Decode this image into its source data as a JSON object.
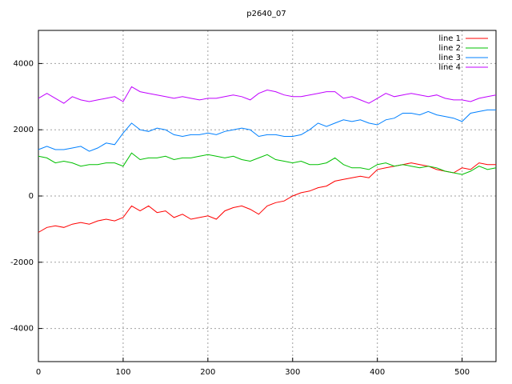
{
  "chart_data": {
    "type": "line",
    "title": "p2640_07",
    "x": [
      0,
      10,
      20,
      30,
      40,
      50,
      60,
      70,
      80,
      90,
      100,
      110,
      120,
      130,
      140,
      150,
      160,
      170,
      180,
      190,
      200,
      210,
      220,
      230,
      240,
      250,
      260,
      270,
      280,
      290,
      300,
      310,
      320,
      330,
      340,
      350,
      360,
      370,
      380,
      390,
      400,
      410,
      420,
      430,
      440,
      450,
      460,
      470,
      480,
      490,
      500,
      510,
      520,
      530,
      540
    ],
    "series": [
      {
        "name": "line 1",
        "color": "#ff0000",
        "values": [
          -1100,
          -950,
          -900,
          -950,
          -850,
          -800,
          -850,
          -750,
          -700,
          -750,
          -650,
          -300,
          -450,
          -300,
          -500,
          -450,
          -650,
          -550,
          -700,
          -650,
          -600,
          -700,
          -450,
          -350,
          -300,
          -400,
          -550,
          -300,
          -200,
          -150,
          0,
          100,
          150,
          250,
          300,
          450,
          500,
          550,
          600,
          550,
          800,
          850,
          900,
          950,
          1000,
          950,
          900,
          800,
          750,
          700,
          850,
          800,
          1000,
          950,
          950
        ]
      },
      {
        "name": "line 2",
        "color": "#00c000",
        "values": [
          1200,
          1150,
          1000,
          1050,
          1000,
          900,
          950,
          950,
          1000,
          1000,
          900,
          1300,
          1100,
          1150,
          1150,
          1200,
          1100,
          1150,
          1150,
          1200,
          1250,
          1200,
          1150,
          1200,
          1100,
          1050,
          1150,
          1250,
          1100,
          1050,
          1000,
          1050,
          950,
          950,
          1000,
          1150,
          950,
          850,
          850,
          800,
          950,
          1000,
          900,
          950,
          900,
          850,
          900,
          850,
          750,
          700,
          650,
          750,
          900,
          800,
          850
        ]
      },
      {
        "name": "line 3",
        "color": "#0080ff",
        "values": [
          1400,
          1500,
          1400,
          1400,
          1450,
          1500,
          1350,
          1450,
          1600,
          1550,
          1900,
          2200,
          2000,
          1950,
          2050,
          2000,
          1850,
          1800,
          1850,
          1850,
          1900,
          1850,
          1950,
          2000,
          2050,
          2000,
          1800,
          1850,
          1850,
          1800,
          1800,
          1850,
          2000,
          2200,
          2100,
          2200,
          2300,
          2250,
          2300,
          2200,
          2150,
          2300,
          2350,
          2500,
          2500,
          2450,
          2550,
          2450,
          2400,
          2350,
          2250,
          2500,
          2550,
          2600,
          2600
        ]
      },
      {
        "name": "line 4",
        "color": "#c000ff",
        "values": [
          2950,
          3100,
          2950,
          2800,
          3000,
          2900,
          2850,
          2900,
          2950,
          3000,
          2850,
          3300,
          3150,
          3100,
          3050,
          3000,
          2950,
          3000,
          2950,
          2900,
          2950,
          2950,
          3000,
          3050,
          3000,
          2900,
          3100,
          3200,
          3150,
          3050,
          3000,
          3000,
          3050,
          3100,
          3150,
          3150,
          2950,
          3000,
          2900,
          2800,
          2950,
          3100,
          3000,
          3050,
          3100,
          3050,
          3000,
          3050,
          2950,
          2900,
          2900,
          2850,
          2950,
          3000,
          3050
        ]
      }
    ],
    "xlim": [
      0,
      540
    ],
    "xticks": [
      0,
      100,
      200,
      300,
      400,
      500
    ],
    "ylim": [
      -5000,
      5000
    ],
    "yticks": [
      -4000,
      -2000,
      0,
      2000,
      4000
    ],
    "grid": true,
    "legend": "top-right"
  }
}
